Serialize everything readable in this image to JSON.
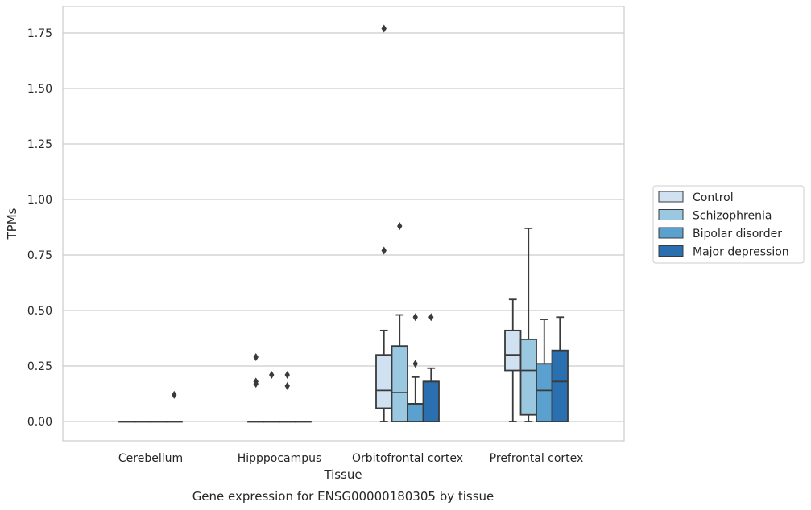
{
  "chart_data": {
    "type": "boxplot",
    "caption": "Gene expression for ENSG00000180305 by tissue",
    "xlabel": "Tissue",
    "ylabel": "TPMs",
    "ylim": [
      -0.085,
      1.87
    ],
    "yticks": [
      0.0,
      0.25,
      0.5,
      0.75,
      1.0,
      1.25,
      1.5,
      1.75
    ],
    "ytick_labels": [
      "0.00",
      "0.25",
      "0.50",
      "0.75",
      "1.00",
      "1.25",
      "1.50",
      "1.75"
    ],
    "grid": "horizontal",
    "legend_position": "right",
    "categories": [
      "Cerebellum",
      "Hipppocampus",
      "Orbitofrontal cortex",
      "Prefrontal cortex"
    ],
    "series": [
      {
        "name": "Control",
        "color": "#d0e2f1",
        "boxes": [
          {
            "min": 0,
            "q1": 0,
            "median": 0,
            "q3": 0,
            "max": 0,
            "outliers": []
          },
          {
            "min": 0,
            "q1": 0,
            "median": 0,
            "q3": 0,
            "max": 0,
            "outliers": [
              0.29,
              0.18,
              0.17
            ]
          },
          {
            "min": 0,
            "q1": 0.06,
            "median": 0.14,
            "q3": 0.3,
            "max": 0.41,
            "outliers": [
              0.77,
              1.77
            ]
          },
          {
            "min": 0,
            "q1": 0.23,
            "median": 0.3,
            "q3": 0.41,
            "max": 0.55,
            "outliers": []
          }
        ]
      },
      {
        "name": "Schizophrenia",
        "color": "#9ac8e0",
        "boxes": [
          {
            "min": 0,
            "q1": 0,
            "median": 0,
            "q3": 0,
            "max": 0,
            "outliers": []
          },
          {
            "min": 0,
            "q1": 0,
            "median": 0,
            "q3": 0,
            "max": 0,
            "outliers": [
              0.21
            ]
          },
          {
            "min": 0,
            "q1": 0,
            "median": 0.13,
            "q3": 0.34,
            "max": 0.48,
            "outliers": [
              0.88
            ]
          },
          {
            "min": 0,
            "q1": 0.03,
            "median": 0.23,
            "q3": 0.37,
            "max": 0.87,
            "outliers": []
          }
        ]
      },
      {
        "name": "Bipolar disorder",
        "color": "#5aa1cf",
        "boxes": [
          {
            "min": 0,
            "q1": 0,
            "median": 0,
            "q3": 0,
            "max": 0,
            "outliers": []
          },
          {
            "min": 0,
            "q1": 0,
            "median": 0,
            "q3": 0,
            "max": 0,
            "outliers": [
              0.21,
              0.16
            ]
          },
          {
            "min": 0,
            "q1": 0,
            "median": 0.08,
            "q3": 0.08,
            "max": 0.2,
            "outliers": [
              0.26,
              0.47
            ]
          },
          {
            "min": 0,
            "q1": 0,
            "median": 0.14,
            "q3": 0.26,
            "max": 0.46,
            "outliers": []
          }
        ]
      },
      {
        "name": "Major depression",
        "color": "#2a6fb0",
        "boxes": [
          {
            "min": 0,
            "q1": 0,
            "median": 0,
            "q3": 0,
            "max": 0,
            "outliers": [
              0.12
            ]
          },
          {
            "min": 0,
            "q1": 0,
            "median": 0,
            "q3": 0,
            "max": 0,
            "outliers": []
          },
          {
            "min": 0,
            "q1": 0,
            "median": 0.18,
            "q3": 0.18,
            "max": 0.24,
            "outliers": [
              0.47
            ]
          },
          {
            "min": 0,
            "q1": 0,
            "median": 0.18,
            "q3": 0.32,
            "max": 0.47,
            "outliers": []
          }
        ]
      }
    ]
  }
}
